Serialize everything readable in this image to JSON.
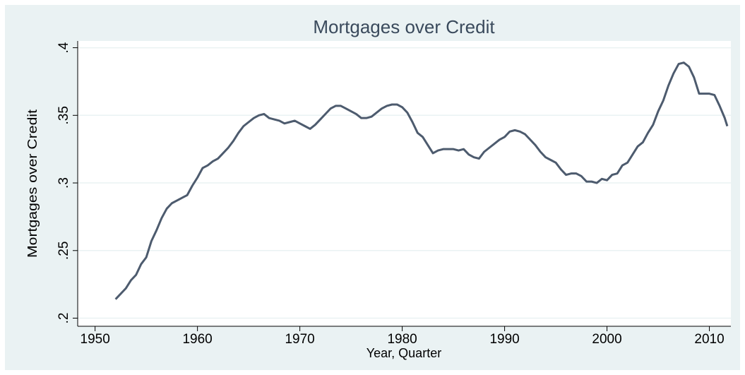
{
  "chart_data": {
    "type": "line",
    "title": "Mortgages over Credit",
    "x_label": "Year, Quarter",
    "y_label": "Mortgages over Credit",
    "xlim": [
      1948.3,
      2012.1
    ],
    "ylim": [
      0.194,
      0.405
    ],
    "xticks": [
      1950,
      1960,
      1970,
      1980,
      1990,
      2000,
      2010
    ],
    "yticks": [
      {
        "value": 0.2,
        "label": ".2"
      },
      {
        "value": 0.25,
        "label": ".25"
      },
      {
        "value": 0.3,
        "label": ".3"
      },
      {
        "value": 0.35,
        "label": ".35"
      },
      {
        "value": 0.4,
        "label": ".4"
      }
    ],
    "grid": true,
    "x": [
      1952,
      1953,
      1953.5,
      1954,
      1954.5,
      1955,
      1955.5,
      1956,
      1956.5,
      1957,
      1957.5,
      1958,
      1958.5,
      1959,
      1959.5,
      1960,
      1960.5,
      1961,
      1961.5,
      1962,
      1962.5,
      1963,
      1963.5,
      1964,
      1964.5,
      1965,
      1965.5,
      1966,
      1966.5,
      1967,
      1967.5,
      1968,
      1968.5,
      1969,
      1969.5,
      1970,
      1970.5,
      1971,
      1971.5,
      1972,
      1972.5,
      1973,
      1973.5,
      1974,
      1974.5,
      1975,
      1975.5,
      1976,
      1976.5,
      1977,
      1977.5,
      1978,
      1978.5,
      1979,
      1979.5,
      1980,
      1980.5,
      1981,
      1981.5,
      1982,
      1982.5,
      1983,
      1983.5,
      1984,
      1984.5,
      1985,
      1985.5,
      1986,
      1986.5,
      1987,
      1987.5,
      1988,
      1988.5,
      1989,
      1989.5,
      1990,
      1990.5,
      1991,
      1991.5,
      1992,
      1992.5,
      1993,
      1993.5,
      1994,
      1994.5,
      1995,
      1995.5,
      1996,
      1996.5,
      1997,
      1997.5,
      1998,
      1998.5,
      1999,
      1999.5,
      2000,
      2000.5,
      2001,
      2001.5,
      2002,
      2002.5,
      2003,
      2003.5,
      2004,
      2004.5,
      2005,
      2005.5,
      2006,
      2006.5,
      2007,
      2007.5,
      2008,
      2008.5,
      2009,
      2009.5,
      2010,
      2010.5,
      2011,
      2011.5,
      2011.75
    ],
    "series": [
      {
        "name": "Mortgages over Credit",
        "color": "#4d5b6e",
        "values": [
          0.214,
          0.222,
          0.228,
          0.232,
          0.24,
          0.245,
          0.257,
          0.265,
          0.274,
          0.281,
          0.285,
          0.287,
          0.289,
          0.291,
          0.298,
          0.304,
          0.311,
          0.313,
          0.316,
          0.318,
          0.322,
          0.326,
          0.331,
          0.337,
          0.342,
          0.345,
          0.348,
          0.35,
          0.351,
          0.348,
          0.347,
          0.346,
          0.344,
          0.345,
          0.346,
          0.344,
          0.342,
          0.34,
          0.343,
          0.347,
          0.351,
          0.355,
          0.357,
          0.357,
          0.355,
          0.353,
          0.351,
          0.348,
          0.348,
          0.349,
          0.352,
          0.355,
          0.357,
          0.358,
          0.358,
          0.356,
          0.352,
          0.345,
          0.337,
          0.334,
          0.328,
          0.322,
          0.324,
          0.325,
          0.325,
          0.325,
          0.324,
          0.325,
          0.321,
          0.319,
          0.318,
          0.323,
          0.326,
          0.329,
          0.332,
          0.334,
          0.338,
          0.339,
          0.338,
          0.336,
          0.332,
          0.328,
          0.323,
          0.319,
          0.317,
          0.315,
          0.31,
          0.306,
          0.307,
          0.307,
          0.305,
          0.301,
          0.301,
          0.3,
          0.303,
          0.302,
          0.306,
          0.307,
          0.313,
          0.315,
          0.321,
          0.327,
          0.33,
          0.337,
          0.343,
          0.353,
          0.361,
          0.372,
          0.381,
          0.388,
          0.389,
          0.386,
          0.378,
          0.366,
          0.366,
          0.366,
          0.365,
          0.357,
          0.348,
          0.342
        ]
      }
    ]
  }
}
